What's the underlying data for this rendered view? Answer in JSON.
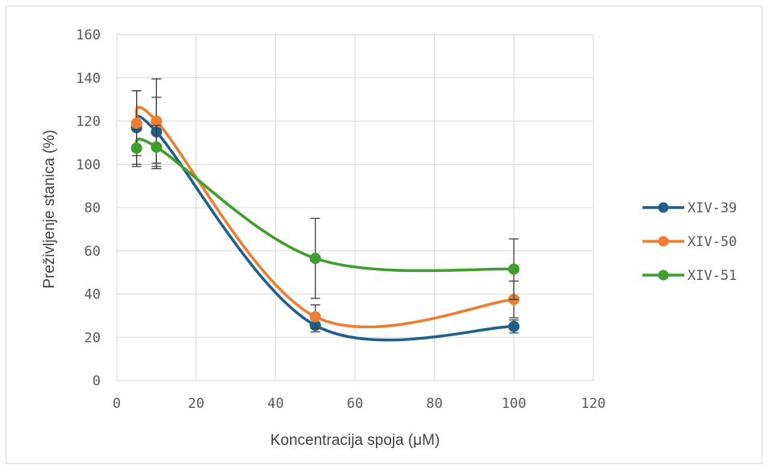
{
  "chart_data": {
    "type": "scatter",
    "title": "",
    "xlabel": "Koncentracija spoja (μM)",
    "ylabel": "Preživljenje stanica (%)",
    "xlim": [
      0,
      120
    ],
    "ylim": [
      0,
      160
    ],
    "x_ticks": [
      0,
      20,
      40,
      60,
      80,
      100,
      120
    ],
    "y_ticks": [
      0,
      20,
      40,
      60,
      80,
      100,
      120,
      140,
      160
    ],
    "grid": true,
    "smoothed_lines": true,
    "error_bars": true,
    "legend_position": "right",
    "x": [
      5,
      10,
      50,
      100
    ],
    "series": [
      {
        "name": "XIV-39",
        "color": "#1f5f8b",
        "values": [
          117,
          115,
          25.5,
          25
        ],
        "errors": [
          17,
          16,
          3,
          3
        ]
      },
      {
        "name": "XIV-50",
        "color": "#ed7d31",
        "values": [
          119,
          120,
          29.5,
          37.5
        ],
        "errors": [
          15,
          19.5,
          5.5,
          8.5
        ]
      },
      {
        "name": "XIV-51",
        "color": "#3f9e2e",
        "values": [
          107.5,
          108,
          56.5,
          51.5
        ],
        "errors": [
          8.5,
          10,
          18.5,
          14
        ]
      }
    ]
  }
}
